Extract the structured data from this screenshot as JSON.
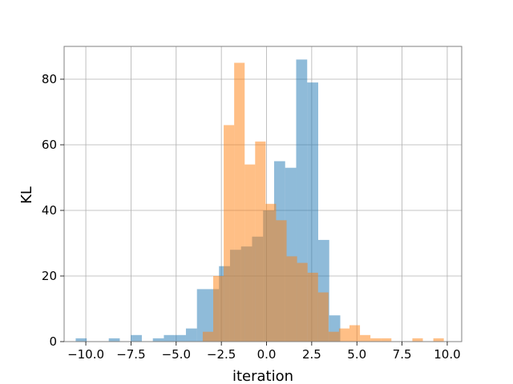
{
  "chart_data": {
    "type": "bar",
    "title": "",
    "xlabel": "iteration",
    "ylabel": "KL",
    "xlim": [
      -11.2,
      10.8
    ],
    "ylim": [
      0,
      90
    ],
    "xticks": [
      -10.0,
      -7.5,
      -5.0,
      -2.5,
      0.0,
      2.5,
      5.0,
      7.5,
      10.0
    ],
    "xtick_labels": [
      "−10.0",
      "−7.5",
      "−5.0",
      "−2.5",
      "0.0",
      "2.5",
      "5.0",
      "7.5",
      "10.0"
    ],
    "yticks": [
      0,
      20,
      40,
      60,
      80
    ],
    "ytick_labels": [
      "0",
      "20",
      "40",
      "60",
      "80"
    ],
    "grid": true,
    "legend": null,
    "series": [
      {
        "color": "#1f77b4",
        "opacity": 0.5,
        "bin_width": 0.61,
        "bins": [
          {
            "x": -10.56,
            "count": 1
          },
          {
            "x": -9.95,
            "count": 0
          },
          {
            "x": -9.34,
            "count": 0
          },
          {
            "x": -8.73,
            "count": 1
          },
          {
            "x": -8.12,
            "count": 0
          },
          {
            "x": -7.51,
            "count": 2
          },
          {
            "x": -6.9,
            "count": 0
          },
          {
            "x": -6.29,
            "count": 1
          },
          {
            "x": -5.68,
            "count": 2
          },
          {
            "x": -5.07,
            "count": 2
          },
          {
            "x": -4.46,
            "count": 4
          },
          {
            "x": -3.85,
            "count": 16
          },
          {
            "x": -3.24,
            "count": 16
          },
          {
            "x": -2.63,
            "count": 23
          },
          {
            "x": -2.02,
            "count": 28
          },
          {
            "x": -1.41,
            "count": 29
          },
          {
            "x": -0.8,
            "count": 32
          },
          {
            "x": -0.19,
            "count": 40
          },
          {
            "x": 0.42,
            "count": 55
          },
          {
            "x": 1.03,
            "count": 53
          },
          {
            "x": 1.64,
            "count": 86
          },
          {
            "x": 2.25,
            "count": 79
          },
          {
            "x": 2.86,
            "count": 31
          },
          {
            "x": 3.47,
            "count": 8
          }
        ]
      },
      {
        "color": "#ff7f0e",
        "opacity": 0.5,
        "bin_width": 0.58,
        "bins": [
          {
            "x": -3.53,
            "count": 3
          },
          {
            "x": -2.95,
            "count": 20
          },
          {
            "x": -2.37,
            "count": 66
          },
          {
            "x": -1.79,
            "count": 85
          },
          {
            "x": -1.21,
            "count": 54
          },
          {
            "x": -0.63,
            "count": 61
          },
          {
            "x": -0.05,
            "count": 42
          },
          {
            "x": 0.53,
            "count": 37
          },
          {
            "x": 1.11,
            "count": 26
          },
          {
            "x": 1.69,
            "count": 24
          },
          {
            "x": 2.27,
            "count": 21
          },
          {
            "x": 2.85,
            "count": 15
          },
          {
            "x": 3.43,
            "count": 3
          },
          {
            "x": 4.01,
            "count": 4
          },
          {
            "x": 4.59,
            "count": 5
          },
          {
            "x": 5.17,
            "count": 2
          },
          {
            "x": 5.75,
            "count": 1
          },
          {
            "x": 6.33,
            "count": 1
          },
          {
            "x": 6.91,
            "count": 0
          },
          {
            "x": 7.49,
            "count": 0
          },
          {
            "x": 8.07,
            "count": 1
          },
          {
            "x": 8.65,
            "count": 0
          },
          {
            "x": 9.23,
            "count": 1
          }
        ]
      }
    ]
  }
}
